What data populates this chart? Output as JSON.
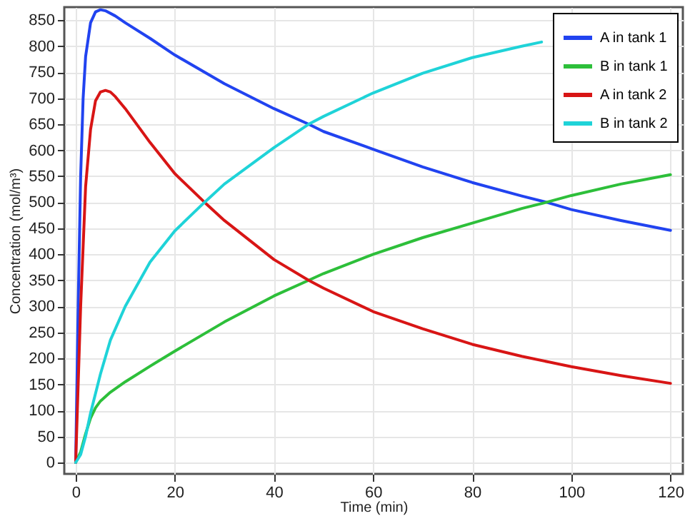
{
  "chart_data": {
    "type": "line",
    "xlabel": "Time (min)",
    "ylabel": "Concentration (mol/m³)",
    "xlim": [
      -2.3,
      122.5
    ],
    "ylim": [
      -22,
      875
    ],
    "xticks": [
      0,
      20,
      40,
      60,
      80,
      100,
      120
    ],
    "yticks": [
      0,
      50,
      100,
      150,
      200,
      250,
      300,
      350,
      400,
      450,
      500,
      550,
      600,
      650,
      700,
      750,
      800,
      850
    ],
    "grid": true,
    "legend": "top right",
    "marker": "none",
    "line_style": "solid",
    "series": [
      {
        "name": "A in tank 1",
        "color": "#2143f0",
        "x": [
          0,
          0.5,
          1,
          1.5,
          2,
          3,
          4,
          5,
          6,
          8,
          10,
          15,
          20,
          30,
          40,
          47,
          50,
          60,
          70,
          80,
          90,
          95,
          100,
          110,
          120
        ],
        "values": [
          0,
          300,
          550,
          700,
          780,
          845,
          866,
          870,
          868,
          858,
          845,
          815,
          783,
          728,
          680,
          650,
          636,
          602,
          568,
          538,
          512,
          500,
          486,
          465,
          446
        ]
      },
      {
        "name": "B in tank 1",
        "color": "#2dbf3a",
        "x": [
          0,
          1,
          2,
          3,
          4,
          5,
          7,
          10,
          15,
          20,
          30,
          40,
          47,
          50,
          60,
          70,
          80,
          90,
          95,
          100,
          110,
          120
        ],
        "values": [
          0,
          20,
          55,
          85,
          105,
          118,
          135,
          155,
          185,
          214,
          270,
          320,
          350,
          363,
          400,
          432,
          460,
          488,
          500,
          513,
          535,
          553
        ]
      },
      {
        "name": "A in tank 2",
        "color": "#d81515",
        "x": [
          0,
          1,
          2,
          3,
          4,
          5,
          6,
          7,
          8,
          10,
          15,
          20,
          26,
          30,
          40,
          47,
          50,
          60,
          70,
          80,
          90,
          100,
          110,
          120
        ],
        "values": [
          0,
          300,
          530,
          640,
          695,
          712,
          715,
          712,
          703,
          680,
          615,
          555,
          500,
          465,
          390,
          350,
          335,
          290,
          257,
          227,
          204,
          184,
          167,
          152
        ]
      },
      {
        "name": "B in tank 2",
        "color": "#1fd3d8",
        "x": [
          0,
          1,
          2,
          3,
          5,
          7,
          10,
          15,
          20,
          26,
          30,
          40,
          47,
          50,
          60,
          70,
          80,
          90,
          94
        ],
        "values": [
          0,
          15,
          50,
          95,
          170,
          235,
          300,
          385,
          445,
          500,
          535,
          605,
          650,
          665,
          710,
          748,
          778,
          800,
          808
        ]
      }
    ]
  }
}
